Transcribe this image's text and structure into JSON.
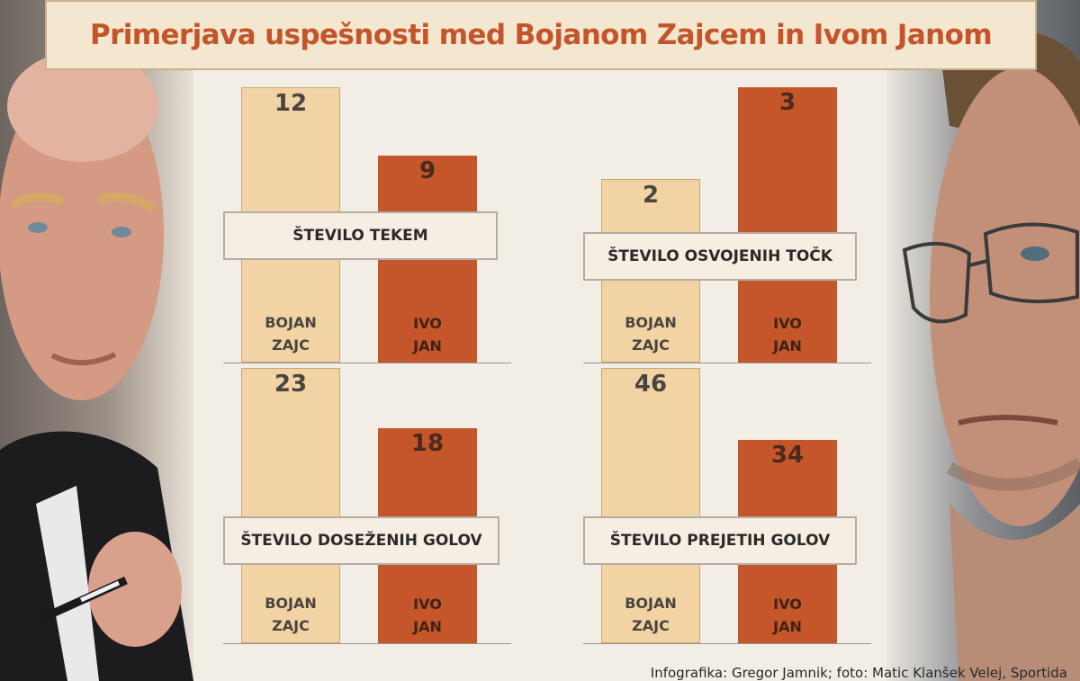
{
  "title": "Primerjava uspešnosti med Bojanom Zajcem in Ivom Janom",
  "credit": "Infografika: Gregor Jamnik; foto: Matic Klanšek Velej, Sportida",
  "colors": {
    "bojan_bar": "#f2d3a4",
    "ivo_bar": "#c4562a",
    "title_text": "#c4542a",
    "title_background": "#f4e7cf"
  },
  "names": {
    "bojan": [
      "BOJAN",
      "ZAJC"
    ],
    "ivo": [
      "IVO",
      "JAN"
    ]
  },
  "chart_data": [
    {
      "type": "bar",
      "title": "ŠTEVILO TEKEM",
      "categories": [
        "BOJAN ZAJC",
        "IVO JAN"
      ],
      "values": [
        12,
        9
      ]
    },
    {
      "type": "bar",
      "title": "ŠTEVILO OSVOJENIH TOČK",
      "categories": [
        "BOJAN ZAJC",
        "IVO JAN"
      ],
      "values": [
        2,
        3
      ]
    },
    {
      "type": "bar",
      "title": "ŠTEVILO DOSEŽENIH GOLOV",
      "categories": [
        "BOJAN ZAJC",
        "IVO JAN"
      ],
      "values": [
        23,
        18
      ]
    },
    {
      "type": "bar",
      "title": "ŠTEVILO PREJETIH GOLOV",
      "categories": [
        "BOJAN ZAJC",
        "IVO JAN"
      ],
      "values": [
        46,
        34
      ]
    }
  ]
}
